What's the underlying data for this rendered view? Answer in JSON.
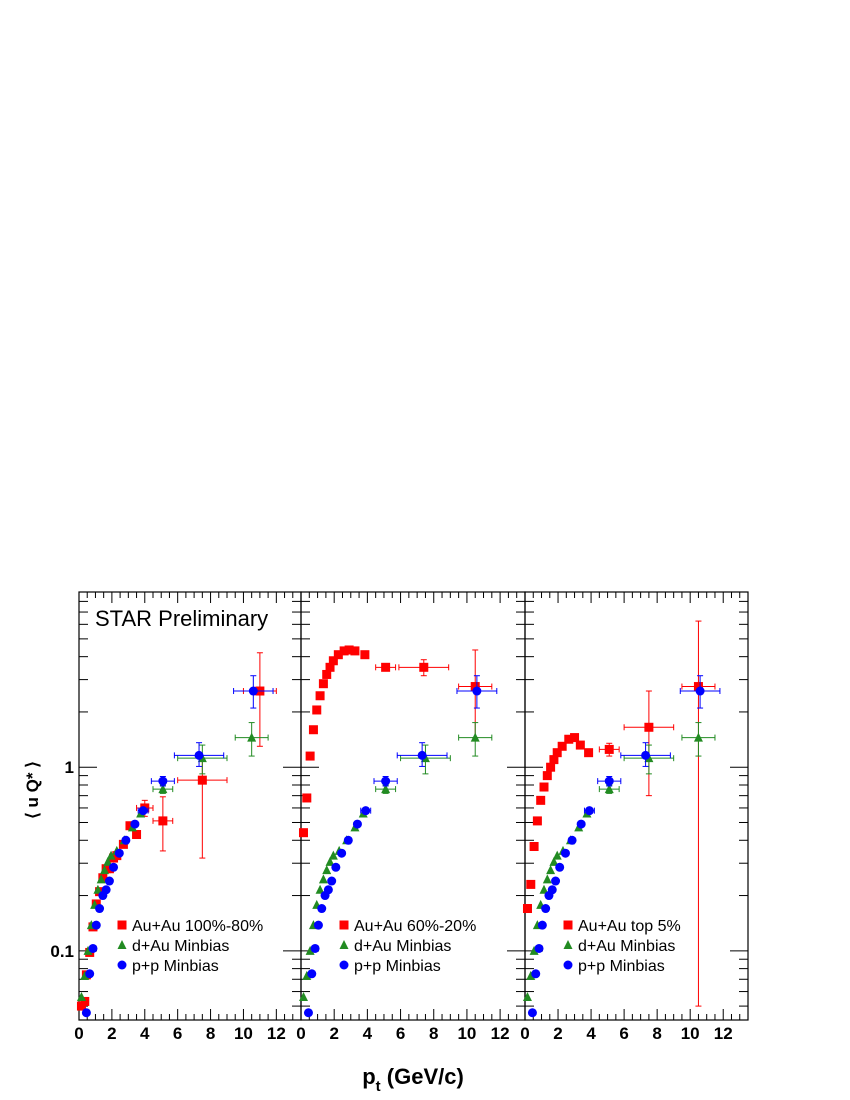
{
  "chart_data": {
    "type": "scatter",
    "annotation": "STAR Preliminary",
    "xlabel_main": "p",
    "xlabel_sub": "t",
    "xlabel_rest": " (GeV/c)",
    "ylabel": "⟨ u Q* ⟩",
    "y_scale": "log",
    "ylim": [
      0.042,
      9.0
    ],
    "xlim": [
      0,
      13.5
    ],
    "x_ticks": [
      "0",
      "2",
      "4",
      "6",
      "8",
      "10",
      "12"
    ],
    "y_tick_labels": [
      {
        "value": 0.1,
        "label": "0.1"
      },
      {
        "value": 1,
        "label": "1"
      }
    ],
    "legend_position": "bottom-right",
    "colors": {
      "auau": "#ff0000",
      "dau": "#228b22",
      "pp": "#0000ff"
    },
    "panels": [
      {
        "series": [
          {
            "name": "Au+Au 100%-80%",
            "marker": "square",
            "color": "#ff0000",
            "points": [
              {
                "x": 0.15,
                "y": 0.05
              },
              {
                "x": 0.35,
                "y": 0.053
              },
              {
                "x": 0.45,
                "y": 0.074
              },
              {
                "x": 0.65,
                "y": 0.098
              },
              {
                "x": 0.85,
                "y": 0.135
              },
              {
                "x": 1.05,
                "y": 0.18
              },
              {
                "x": 1.25,
                "y": 0.21
              },
              {
                "x": 1.45,
                "y": 0.25
              },
              {
                "x": 1.65,
                "y": 0.28
              },
              {
                "x": 1.85,
                "y": 0.28
              },
              {
                "x": 2.1,
                "y": 0.32
              },
              {
                "x": 2.3,
                "y": 0.33
              },
              {
                "x": 2.7,
                "y": 0.38
              },
              {
                "x": 3.1,
                "y": 0.48
              },
              {
                "x": 3.5,
                "y": 0.43
              },
              {
                "x": 4.0,
                "y": 0.6,
                "xerr": 0.5,
                "yerr_lo": 0.06,
                "yerr_hi": 0.06
              },
              {
                "x": 5.1,
                "y": 0.51,
                "xerr": 0.6,
                "yerr_lo": 0.16,
                "yerr_hi": 0.18
              },
              {
                "x": 7.5,
                "y": 0.85,
                "xerr": 1.5,
                "yerr_lo": 0.53,
                "yerr_hi": 0.25
              },
              {
                "x": 11.0,
                "y": 2.6,
                "xerr": 1.0,
                "yerr_lo": 1.3,
                "yerr_hi": 1.6
              }
            ]
          },
          {
            "name": "d+Au Minbias",
            "marker": "triangle",
            "color": "#228b22",
            "points": [
              {
                "x": 0.15,
                "y": 0.056
              },
              {
                "x": 0.35,
                "y": 0.073
              },
              {
                "x": 0.55,
                "y": 0.1
              },
              {
                "x": 0.75,
                "y": 0.138
              },
              {
                "x": 0.95,
                "y": 0.178
              },
              {
                "x": 1.15,
                "y": 0.215
              },
              {
                "x": 1.35,
                "y": 0.245
              },
              {
                "x": 1.55,
                "y": 0.275
              },
              {
                "x": 1.75,
                "y": 0.305
              },
              {
                "x": 1.95,
                "y": 0.33
              },
              {
                "x": 2.3,
                "y": 0.35
              },
              {
                "x": 2.75,
                "y": 0.4
              },
              {
                "x": 3.25,
                "y": 0.47
              },
              {
                "x": 3.75,
                "y": 0.56
              },
              {
                "x": 5.1,
                "y": 0.76,
                "xerr": 0.6,
                "yerr_lo": 0.04,
                "yerr_hi": 0.04
              },
              {
                "x": 7.5,
                "y": 1.12,
                "xerr": 1.5,
                "yerr_lo": 0.2,
                "yerr_hi": 0.2
              },
              {
                "x": 10.5,
                "y": 1.45,
                "xerr": 1.0,
                "yerr_lo": 0.3,
                "yerr_hi": 0.3
              }
            ]
          },
          {
            "name": "p+p Minbias",
            "marker": "circle",
            "color": "#0000ff",
            "points": [
              {
                "x": 0.45,
                "y": 0.046
              },
              {
                "x": 0.65,
                "y": 0.075
              },
              {
                "x": 0.85,
                "y": 0.103
              },
              {
                "x": 1.05,
                "y": 0.138
              },
              {
                "x": 1.25,
                "y": 0.17
              },
              {
                "x": 1.45,
                "y": 0.2
              },
              {
                "x": 1.65,
                "y": 0.215
              },
              {
                "x": 1.85,
                "y": 0.24
              },
              {
                "x": 2.1,
                "y": 0.285
              },
              {
                "x": 2.45,
                "y": 0.34
              },
              {
                "x": 2.85,
                "y": 0.4
              },
              {
                "x": 3.4,
                "y": 0.49
              },
              {
                "x": 3.9,
                "y": 0.58,
                "xerr": 0.3,
                "yerr_lo": 0.02,
                "yerr_hi": 0.02
              },
              {
                "x": 5.1,
                "y": 0.84,
                "xerr": 0.7,
                "yerr_lo": 0.05,
                "yerr_hi": 0.05
              },
              {
                "x": 7.3,
                "y": 1.16,
                "xerr": 1.5,
                "yerr_lo": 0.15,
                "yerr_hi": 0.2
              },
              {
                "x": 10.6,
                "y": 2.6,
                "xerr": 1.2,
                "yerr_lo": 0.5,
                "yerr_hi": 0.55
              }
            ]
          }
        ]
      },
      {
        "series": [
          {
            "name": "Au+Au 60%-20%",
            "marker": "square",
            "color": "#ff0000",
            "points": [
              {
                "x": 0.15,
                "y": 0.44
              },
              {
                "x": 0.35,
                "y": 0.68
              },
              {
                "x": 0.55,
                "y": 1.15
              },
              {
                "x": 0.75,
                "y": 1.6
              },
              {
                "x": 0.95,
                "y": 2.05
              },
              {
                "x": 1.15,
                "y": 2.45
              },
              {
                "x": 1.35,
                "y": 2.85
              },
              {
                "x": 1.55,
                "y": 3.2
              },
              {
                "x": 1.75,
                "y": 3.5
              },
              {
                "x": 1.95,
                "y": 3.8
              },
              {
                "x": 2.25,
                "y": 4.1
              },
              {
                "x": 2.6,
                "y": 4.3
              },
              {
                "x": 2.9,
                "y": 4.35
              },
              {
                "x": 3.25,
                "y": 4.3
              },
              {
                "x": 3.85,
                "y": 4.1
              },
              {
                "x": 5.1,
                "y": 3.5,
                "xerr": 0.6,
                "yerr_lo": 0.15,
                "yerr_hi": 0.15
              },
              {
                "x": 7.4,
                "y": 3.5,
                "xerr": 1.5,
                "yerr_lo": 0.35,
                "yerr_hi": 0.35
              },
              {
                "x": 10.5,
                "y": 2.75,
                "xerr": 1.0,
                "yerr_lo": 1.3,
                "yerr_hi": 1.6
              }
            ]
          },
          {
            "name": "d+Au Minbias",
            "marker": "triangle",
            "color": "#228b22",
            "points": [
              {
                "x": 0.15,
                "y": 0.056
              },
              {
                "x": 0.35,
                "y": 0.073
              },
              {
                "x": 0.55,
                "y": 0.1
              },
              {
                "x": 0.75,
                "y": 0.138
              },
              {
                "x": 0.95,
                "y": 0.178
              },
              {
                "x": 1.15,
                "y": 0.215
              },
              {
                "x": 1.35,
                "y": 0.245
              },
              {
                "x": 1.55,
                "y": 0.275
              },
              {
                "x": 1.75,
                "y": 0.305
              },
              {
                "x": 1.95,
                "y": 0.33
              },
              {
                "x": 2.3,
                "y": 0.35
              },
              {
                "x": 2.75,
                "y": 0.4
              },
              {
                "x": 3.25,
                "y": 0.47
              },
              {
                "x": 3.75,
                "y": 0.56
              },
              {
                "x": 5.1,
                "y": 0.76,
                "xerr": 0.6,
                "yerr_lo": 0.04,
                "yerr_hi": 0.04
              },
              {
                "x": 7.5,
                "y": 1.12,
                "xerr": 1.5,
                "yerr_lo": 0.2,
                "yerr_hi": 0.2
              },
              {
                "x": 10.5,
                "y": 1.45,
                "xerr": 1.0,
                "yerr_lo": 0.3,
                "yerr_hi": 0.3
              }
            ]
          },
          {
            "name": "p+p Minbias",
            "marker": "circle",
            "color": "#0000ff",
            "points": [
              {
                "x": 0.45,
                "y": 0.046
              },
              {
                "x": 0.65,
                "y": 0.075
              },
              {
                "x": 0.85,
                "y": 0.103
              },
              {
                "x": 1.05,
                "y": 0.138
              },
              {
                "x": 1.25,
                "y": 0.17
              },
              {
                "x": 1.45,
                "y": 0.2
              },
              {
                "x": 1.65,
                "y": 0.215
              },
              {
                "x": 1.85,
                "y": 0.24
              },
              {
                "x": 2.1,
                "y": 0.285
              },
              {
                "x": 2.45,
                "y": 0.34
              },
              {
                "x": 2.85,
                "y": 0.4
              },
              {
                "x": 3.4,
                "y": 0.49
              },
              {
                "x": 3.9,
                "y": 0.58,
                "xerr": 0.3,
                "yerr_lo": 0.02,
                "yerr_hi": 0.02
              },
              {
                "x": 5.1,
                "y": 0.84,
                "xerr": 0.7,
                "yerr_lo": 0.05,
                "yerr_hi": 0.05
              },
              {
                "x": 7.3,
                "y": 1.16,
                "xerr": 1.5,
                "yerr_lo": 0.15,
                "yerr_hi": 0.2
              },
              {
                "x": 10.6,
                "y": 2.6,
                "xerr": 1.2,
                "yerr_lo": 0.5,
                "yerr_hi": 0.55
              }
            ]
          }
        ]
      },
      {
        "series": [
          {
            "name": "Au+Au top 5%",
            "marker": "square",
            "color": "#ff0000",
            "points": [
              {
                "x": 0.15,
                "y": 0.17
              },
              {
                "x": 0.35,
                "y": 0.23
              },
              {
                "x": 0.55,
                "y": 0.37
              },
              {
                "x": 0.75,
                "y": 0.51
              },
              {
                "x": 0.95,
                "y": 0.66
              },
              {
                "x": 1.15,
                "y": 0.78
              },
              {
                "x": 1.35,
                "y": 0.9
              },
              {
                "x": 1.55,
                "y": 1.0
              },
              {
                "x": 1.75,
                "y": 1.1
              },
              {
                "x": 1.95,
                "y": 1.2
              },
              {
                "x": 2.25,
                "y": 1.3
              },
              {
                "x": 2.65,
                "y": 1.42
              },
              {
                "x": 3.0,
                "y": 1.45
              },
              {
                "x": 3.35,
                "y": 1.32
              },
              {
                "x": 3.85,
                "y": 1.2
              },
              {
                "x": 5.1,
                "y": 1.25,
                "xerr": 0.6,
                "yerr_lo": 0.1,
                "yerr_hi": 0.1
              },
              {
                "x": 7.5,
                "y": 1.65,
                "xerr": 1.5,
                "yerr_lo": 0.95,
                "yerr_hi": 0.95
              },
              {
                "x": 10.5,
                "y": 2.75,
                "xerr": 1.0,
                "yerr_lo": 2.7,
                "yerr_hi": 3.5
              }
            ]
          },
          {
            "name": "d+Au Minbias",
            "marker": "triangle",
            "color": "#228b22",
            "points": [
              {
                "x": 0.15,
                "y": 0.056
              },
              {
                "x": 0.35,
                "y": 0.073
              },
              {
                "x": 0.55,
                "y": 0.1
              },
              {
                "x": 0.75,
                "y": 0.138
              },
              {
                "x": 0.95,
                "y": 0.178
              },
              {
                "x": 1.15,
                "y": 0.215
              },
              {
                "x": 1.35,
                "y": 0.245
              },
              {
                "x": 1.55,
                "y": 0.275
              },
              {
                "x": 1.75,
                "y": 0.305
              },
              {
                "x": 1.95,
                "y": 0.33
              },
              {
                "x": 2.3,
                "y": 0.35
              },
              {
                "x": 2.75,
                "y": 0.4
              },
              {
                "x": 3.25,
                "y": 0.47
              },
              {
                "x": 3.75,
                "y": 0.56
              },
              {
                "x": 5.1,
                "y": 0.76,
                "xerr": 0.6,
                "yerr_lo": 0.04,
                "yerr_hi": 0.04
              },
              {
                "x": 7.5,
                "y": 1.12,
                "xerr": 1.5,
                "yerr_lo": 0.2,
                "yerr_hi": 0.2
              },
              {
                "x": 10.5,
                "y": 1.45,
                "xerr": 1.0,
                "yerr_lo": 0.3,
                "yerr_hi": 0.3
              }
            ]
          },
          {
            "name": "p+p Minbias",
            "marker": "circle",
            "color": "#0000ff",
            "points": [
              {
                "x": 0.45,
                "y": 0.046
              },
              {
                "x": 0.65,
                "y": 0.075
              },
              {
                "x": 0.85,
                "y": 0.103
              },
              {
                "x": 1.05,
                "y": 0.138
              },
              {
                "x": 1.25,
                "y": 0.17
              },
              {
                "x": 1.45,
                "y": 0.2
              },
              {
                "x": 1.65,
                "y": 0.215
              },
              {
                "x": 1.85,
                "y": 0.24
              },
              {
                "x": 2.1,
                "y": 0.285
              },
              {
                "x": 2.45,
                "y": 0.34
              },
              {
                "x": 2.85,
                "y": 0.4
              },
              {
                "x": 3.4,
                "y": 0.49
              },
              {
                "x": 3.9,
                "y": 0.58,
                "xerr": 0.3,
                "yerr_lo": 0.02,
                "yerr_hi": 0.02
              },
              {
                "x": 5.1,
                "y": 0.84,
                "xerr": 0.7,
                "yerr_lo": 0.05,
                "yerr_hi": 0.05
              },
              {
                "x": 7.3,
                "y": 1.16,
                "xerr": 1.5,
                "yerr_lo": 0.15,
                "yerr_hi": 0.2
              },
              {
                "x": 10.6,
                "y": 2.6,
                "xerr": 1.2,
                "yerr_lo": 0.5,
                "yerr_hi": 0.55
              }
            ]
          }
        ]
      }
    ]
  }
}
